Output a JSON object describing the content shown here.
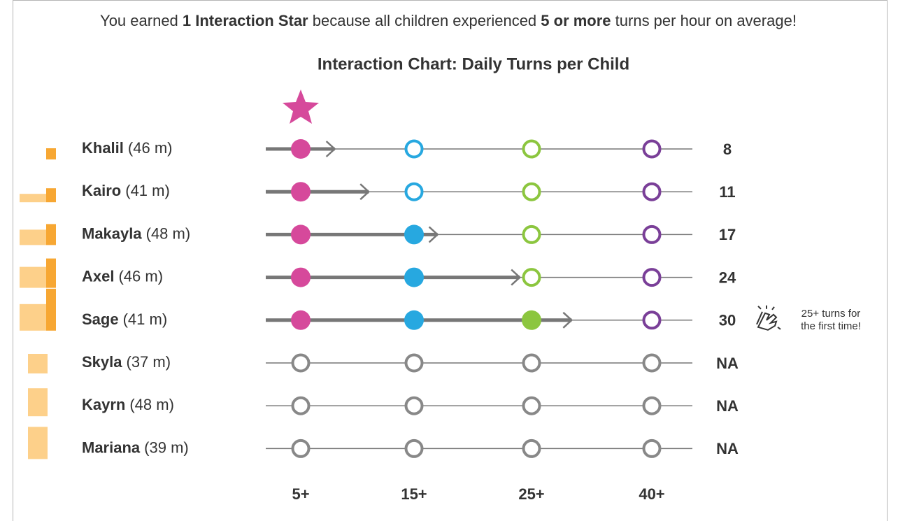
{
  "header": {
    "parts": [
      "You earned ",
      "1 Interaction Star",
      " because all children experienced ",
      "5 or more",
      " turns per hour on average!"
    ]
  },
  "title": "Interaction Chart: Daily Turns per Child",
  "thresholds": [
    {
      "value": 5,
      "label": "5+",
      "color": "#d6499b"
    },
    {
      "value": 15,
      "label": "15+",
      "color": "#27a8e0"
    },
    {
      "value": 25,
      "label": "25+",
      "color": "#8cc63f"
    },
    {
      "value": 40,
      "label": "40+",
      "color": "#7a3f98"
    }
  ],
  "rows": [
    {
      "name": "Khalil",
      "duration": "(46 m)",
      "turns": 8
    },
    {
      "name": "Kairo",
      "duration": "(41 m)",
      "turns": 11
    },
    {
      "name": "Makayla",
      "duration": "(48 m)",
      "turns": 17
    },
    {
      "name": "Axel",
      "duration": "(46 m)",
      "turns": 24
    },
    {
      "name": "Sage",
      "duration": "(41 m)",
      "turns": 30,
      "note": [
        "25+ turns for",
        "the first time!"
      ]
    },
    {
      "name": "Skyla",
      "duration": "(37 m)",
      "turns": "NA"
    },
    {
      "name": "Kayrn",
      "duration": "(48 m)",
      "turns": "NA"
    },
    {
      "name": "Mariana",
      "duration": "(39 m)",
      "turns": "NA"
    }
  ]
}
